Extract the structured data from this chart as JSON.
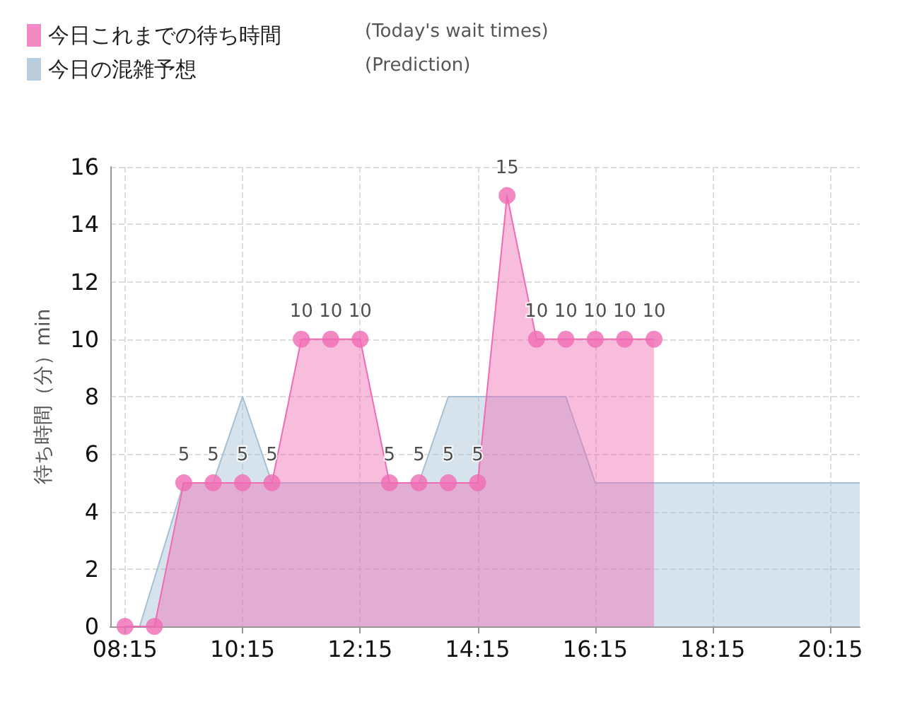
{
  "chart_data": {
    "type": "area",
    "ylabel": "待ち時間（分）min",
    "xlim": [
      8,
      20.75
    ],
    "xticks": [
      {
        "value": 8.25,
        "label": "08:15"
      },
      {
        "value": 10.25,
        "label": "10:15"
      },
      {
        "value": 12.25,
        "label": "12:15"
      },
      {
        "value": 14.25,
        "label": "14:15"
      },
      {
        "value": 16.25,
        "label": "16:15"
      },
      {
        "value": 18.25,
        "label": "18:15"
      },
      {
        "value": 20.25,
        "label": "20:15"
      }
    ],
    "ylim": [
      0,
      16
    ],
    "yticks": [
      0,
      2,
      4,
      6,
      8,
      10,
      12,
      14,
      16
    ],
    "grid": true,
    "legend": "top left",
    "annotations": [
      "(Today's wait times)",
      "(Prediction)"
    ],
    "series": [
      {
        "name": "今日の混雑予想",
        "color": "#a7c0d4",
        "marker": "none",
        "x": [
          8.5,
          9.25,
          9.75,
          10.25,
          10.75,
          11.75,
          13.25,
          13.75,
          15.75,
          16.25,
          20.75
        ],
        "values": [
          0,
          5,
          5,
          8,
          5,
          5,
          5,
          8,
          8,
          5,
          5
        ]
      },
      {
        "name": "今日これまでの待ち時間",
        "color": "#f06bb4",
        "marker": "circle",
        "x": [
          8.25,
          8.75,
          9.25,
          9.75,
          10.25,
          10.75,
          11.25,
          11.75,
          12.25,
          12.75,
          13.25,
          13.75,
          14.25,
          14.75,
          15.25,
          15.75,
          16.25,
          16.75,
          17.25
        ],
        "values": [
          0,
          0,
          5,
          5,
          5,
          5,
          10,
          10,
          10,
          5,
          5,
          5,
          5,
          15,
          10,
          10,
          10,
          10,
          10
        ],
        "value_labels": [
          null,
          null,
          "5",
          "5",
          "5",
          "5",
          "10",
          "10",
          "10",
          "5",
          "5",
          "5",
          "5",
          "15",
          "10",
          "10",
          "10",
          "10",
          "10"
        ]
      }
    ]
  }
}
